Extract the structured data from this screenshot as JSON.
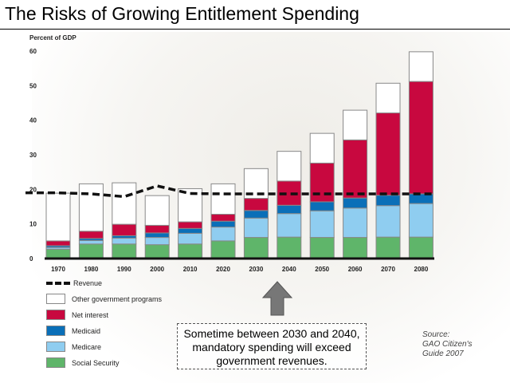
{
  "title": "The Risks of Growing Entitlement Spending",
  "callout": {
    "line1": "Sometime between 2030 and 2040,",
    "line2": "mandatory spending will exceed",
    "line3": "government revenues."
  },
  "source": {
    "line1": "Source:",
    "line2": "GAO Citizen's",
    "line3": "Guide 2007"
  },
  "chart_data": {
    "type": "bar",
    "stacked": true,
    "ylabel": "Percent of GDP",
    "ylim": [
      0,
      60
    ],
    "yticks": [
      0,
      10,
      20,
      30,
      40,
      50,
      60
    ],
    "grid": false,
    "legend_placement": "bottom-left",
    "categories": [
      "1970",
      "1980",
      "1990",
      "2000",
      "2010",
      "2020",
      "2030",
      "2040",
      "2050",
      "2060",
      "2070",
      "2080"
    ],
    "series": [
      {
        "name": "Social Security",
        "color": "#5fb56a",
        "values": [
          2.7,
          4.2,
          4.2,
          4.0,
          4.2,
          5.1,
          6.1,
          6.2,
          6.1,
          6.1,
          6.2,
          6.2
        ]
      },
      {
        "name": "Medicare",
        "color": "#8fcdf0",
        "values": [
          0.5,
          1.0,
          1.7,
          2.1,
          3.1,
          4.0,
          5.6,
          6.8,
          7.7,
          8.5,
          9.1,
          9.7
        ]
      },
      {
        "name": "Medicaid",
        "color": "#0a6fb8",
        "values": [
          0.5,
          0.6,
          0.7,
          1.3,
          1.4,
          1.7,
          2.2,
          2.4,
          2.6,
          2.9,
          3.0,
          2.8
        ]
      },
      {
        "name": "Net interest",
        "color": "#c8083f",
        "values": [
          1.4,
          2.1,
          3.3,
          2.2,
          1.9,
          2.0,
          3.5,
          7.0,
          11.2,
          16.8,
          23.8,
          32.5
        ]
      },
      {
        "name": "Other government programs",
        "color": "#ffffff",
        "values": [
          13.8,
          13.7,
          12.0,
          8.6,
          9.6,
          8.8,
          8.6,
          8.6,
          8.6,
          8.6,
          8.6,
          8.6
        ]
      }
    ],
    "line_series": {
      "name": "Revenue",
      "style": "dashed",
      "color": "#111111",
      "values": [
        19.0,
        18.7,
        17.9,
        21.0,
        18.8,
        18.7,
        18.7,
        18.7,
        18.7,
        18.7,
        18.7,
        18.7
      ]
    }
  }
}
